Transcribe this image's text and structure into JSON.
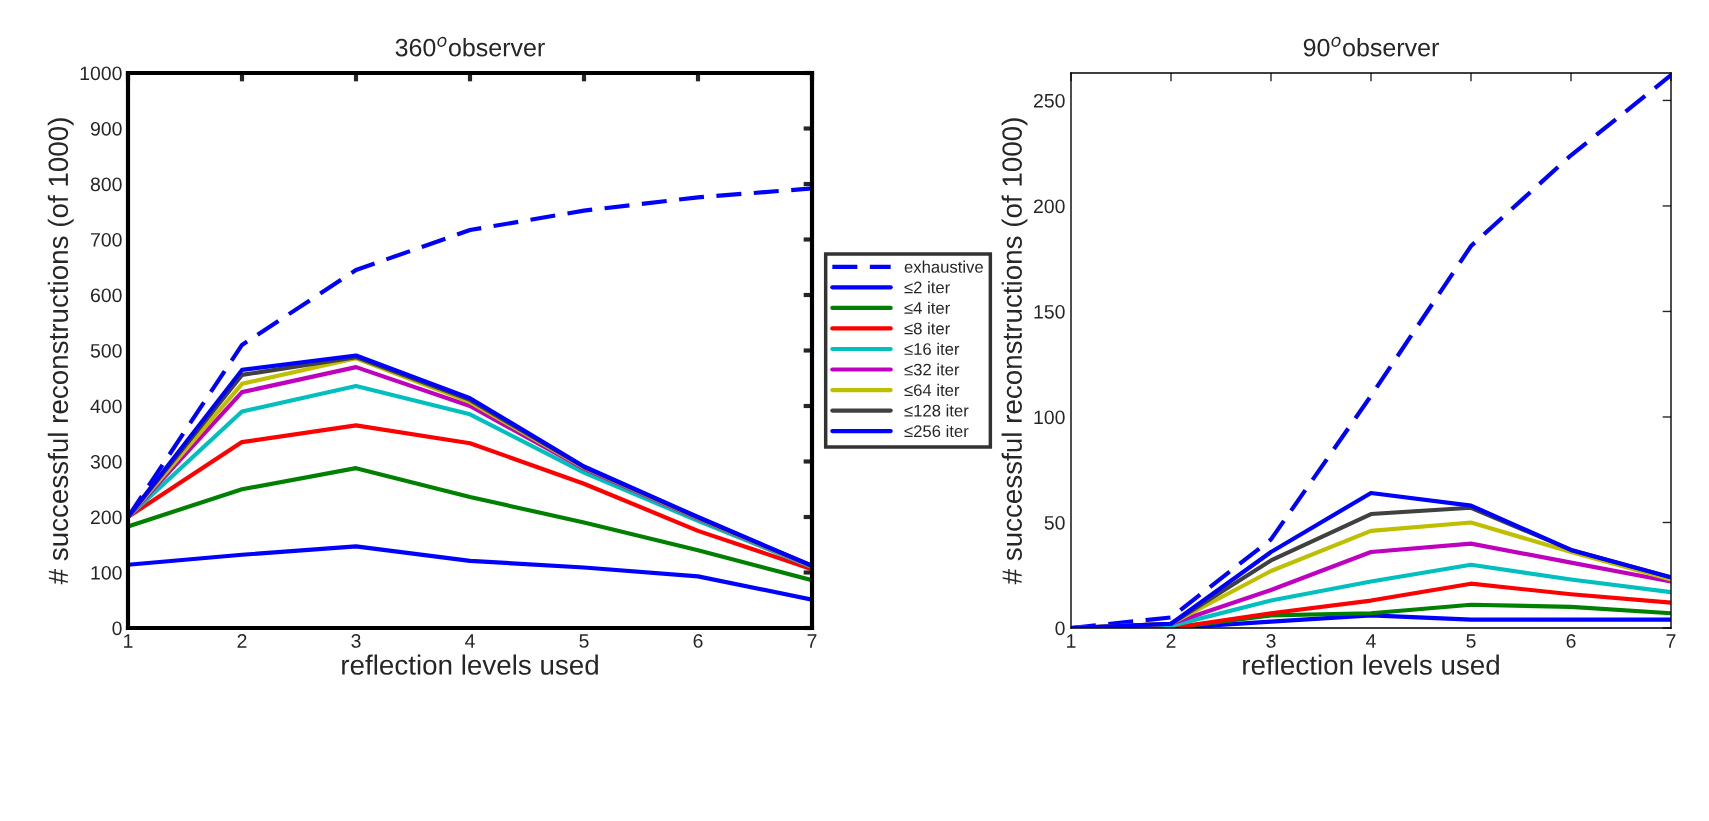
{
  "chart_data": [
    {
      "type": "line",
      "title": "360$^{o}$observer",
      "xlabel": "reflection levels used",
      "ylabel": "# successful reconstructions (of 1000)",
      "x": [
        1,
        2,
        3,
        4,
        5,
        6,
        7
      ],
      "xlim": [
        1,
        7
      ],
      "xticks": [
        1,
        2,
        3,
        4,
        5,
        6,
        7
      ],
      "ylim": [
        0,
        1000
      ],
      "yticks": [
        0,
        100,
        200,
        300,
        400,
        500,
        600,
        700,
        800,
        900,
        1000
      ],
      "grid": false,
      "legend": "right",
      "series": [
        {
          "name": "exhaustive",
          "color": "#0000ff",
          "line_style": "dashed",
          "values": [
            200,
            510,
            645,
            717,
            752,
            776,
            792
          ]
        },
        {
          "name": "≤2 iter",
          "color": "#0000ff",
          "values": [
            114,
            132,
            147,
            121,
            109,
            93,
            51
          ]
        },
        {
          "name": "≤4 iter",
          "color": "#008000",
          "values": [
            183,
            250,
            288,
            236,
            190,
            140,
            86
          ]
        },
        {
          "name": "≤8 iter",
          "color": "#ff0000",
          "values": [
            200,
            335,
            365,
            333,
            260,
            175,
            106
          ]
        },
        {
          "name": "≤16 iter",
          "color": "#00bfbf",
          "values": [
            200,
            390,
            436,
            385,
            280,
            193,
            110
          ]
        },
        {
          "name": "≤32 iter",
          "color": "#bf00bf",
          "values": [
            200,
            425,
            470,
            400,
            287,
            197,
            111
          ]
        },
        {
          "name": "≤64 iter",
          "color": "#bfbf00",
          "values": [
            200,
            440,
            486,
            407,
            289,
            198,
            111
          ]
        },
        {
          "name": "≤128 iter",
          "color": "#404040",
          "values": [
            200,
            456,
            488,
            411,
            290,
            199,
            112
          ]
        },
        {
          "name": "≤256 iter",
          "color": "#0000ff",
          "values": [
            200,
            465,
            491,
            414,
            291,
            200,
            112
          ]
        }
      ]
    },
    {
      "type": "line",
      "title": "90$^{o}$observer",
      "xlabel": "reflection levels used",
      "ylabel": "# successful reconstructions (of 1000)",
      "x": [
        1,
        2,
        3,
        4,
        5,
        6,
        7
      ],
      "xlim": [
        1,
        7
      ],
      "xticks": [
        1,
        2,
        3,
        4,
        5,
        6,
        7
      ],
      "ylim": [
        0,
        263
      ],
      "yticks": [
        0,
        50,
        100,
        150,
        200,
        250
      ],
      "grid": false,
      "legend": false,
      "series": [
        {
          "color": "#0000ff",
          "line_style": "dashed",
          "values": [
            0,
            5,
            42,
            110,
            181,
            224,
            262
          ]
        },
        {
          "color": "#0000ff",
          "values": [
            0,
            0,
            3,
            6,
            4,
            4,
            4
          ]
        },
        {
          "color": "#008000",
          "values": [
            0,
            0,
            6,
            7,
            11,
            10,
            7
          ]
        },
        {
          "color": "#ff0000",
          "values": [
            0,
            0,
            7,
            13,
            21,
            16,
            12
          ]
        },
        {
          "color": "#00bfbf",
          "values": [
            0,
            1,
            13,
            22,
            30,
            23,
            17
          ]
        },
        {
          "color": "#bf00bf",
          "values": [
            0,
            2,
            18,
            36,
            40,
            31,
            22
          ]
        },
        {
          "color": "#bfbf00",
          "values": [
            0,
            2,
            27,
            46,
            50,
            36,
            23
          ]
        },
        {
          "color": "#404040",
          "values": [
            0,
            2,
            32,
            54,
            57,
            37,
            24
          ]
        },
        {
          "color": "#0000ff",
          "values": [
            0,
            2,
            36,
            64,
            58,
            37,
            24
          ]
        }
      ]
    }
  ]
}
